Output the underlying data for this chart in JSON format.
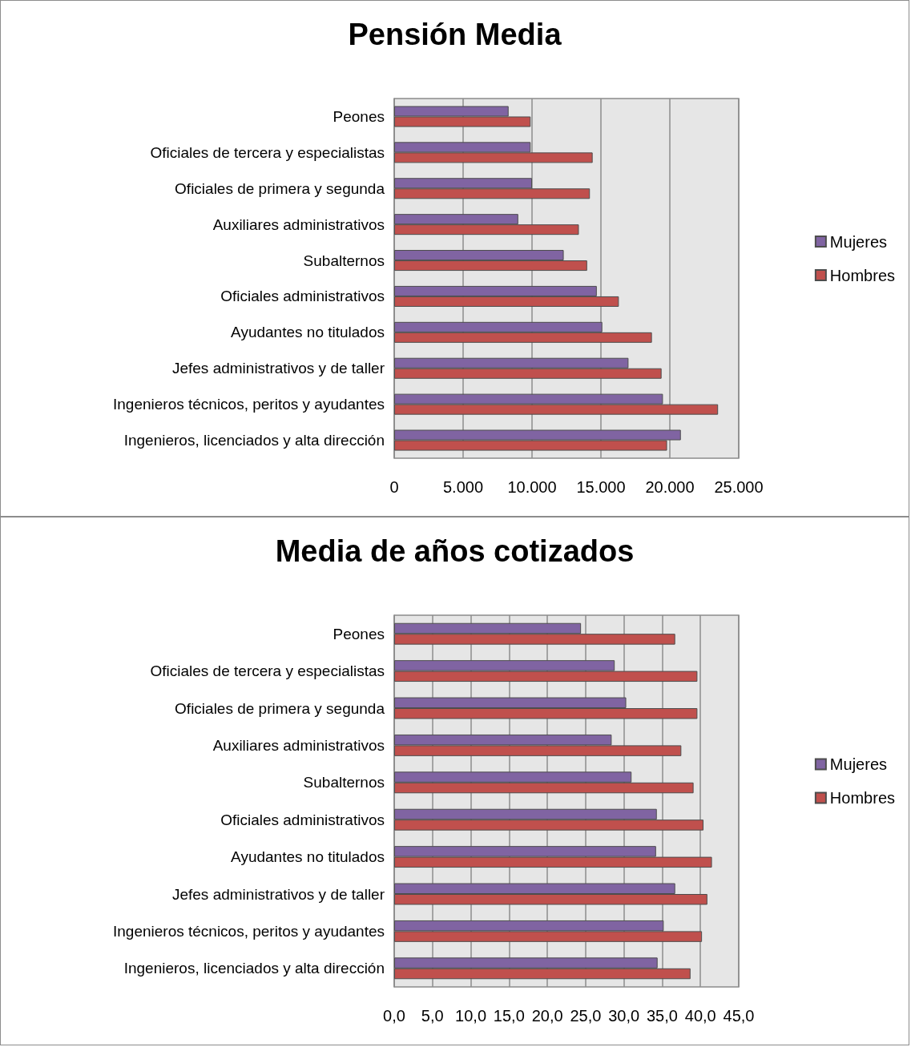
{
  "chart_data": [
    {
      "type": "bar",
      "orientation": "horizontal",
      "title": "Pensión Media",
      "categories": [
        "Peones",
        "Oficiales de tercera y especialistas",
        "Oficiales de primera y segunda",
        "Auxiliares administrativos",
        "Subalternos",
        "Oficiales administrativos",
        "Ayudantes no titulados",
        "Jefes administrativos y de taller",
        "Ingenieros técnicos, peritos y ayudantes",
        "Ingenieros, licenciados y alta dirección"
      ],
      "series": [
        {
          "name": "Mujeres",
          "color": "#8064a2",
          "values": [
            8300,
            9900,
            10000,
            9000,
            12300,
            14700,
            15100,
            17000,
            19500,
            20800
          ]
        },
        {
          "name": "Hombres",
          "color": "#c0504d",
          "values": [
            9900,
            14400,
            14200,
            13400,
            14000,
            16300,
            18700,
            19400,
            23500,
            19800
          ]
        }
      ],
      "xlim": [
        0,
        25000
      ],
      "xticks": [
        0,
        {
          "value": 5000,
          "label": "5.000"
        },
        {
          "value": 10000,
          "label": "10.000"
        },
        {
          "value": 15000,
          "label": "15.000"
        },
        {
          "value": 20000,
          "label": "20.000"
        },
        {
          "value": 25000,
          "label": "25.000"
        }
      ],
      "grid": "x",
      "legend": "right"
    },
    {
      "type": "bar",
      "orientation": "horizontal",
      "title": "Media de años cotizados",
      "categories": [
        "Peones",
        "Oficiales de tercera y especialistas",
        "Oficiales de primera y segunda",
        "Auxiliares administrativos",
        "Subalternos",
        "Oficiales administrativos",
        "Ayudantes no titulados",
        "Jefes administrativos y de taller",
        "Ingenieros técnicos, peritos y ayudantes",
        "Ingenieros, licenciados y alta dirección"
      ],
      "series": [
        {
          "name": "Mujeres",
          "color": "#8064a2",
          "values": [
            24.4,
            28.8,
            30.3,
            28.4,
            31.0,
            34.3,
            34.2,
            36.7,
            35.2,
            34.4
          ]
        },
        {
          "name": "Hombres",
          "color": "#c0504d",
          "values": [
            36.7,
            39.6,
            39.6,
            37.5,
            39.1,
            40.4,
            41.5,
            40.9,
            40.2,
            38.7
          ]
        }
      ],
      "xlim": [
        0,
        45
      ],
      "xticks": [
        {
          "value": 0,
          "label": "0,0"
        },
        {
          "value": 5,
          "label": "5,0"
        },
        {
          "value": 10,
          "label": "10,0"
        },
        {
          "value": 15,
          "label": "15,0"
        },
        {
          "value": 20,
          "label": "20,0"
        },
        {
          "value": 25,
          "label": "25,0"
        },
        {
          "value": 30,
          "label": "30,0"
        },
        {
          "value": 35,
          "label": "35,0"
        },
        {
          "value": 40,
          "label": "40,0"
        },
        {
          "value": 45,
          "label": "45,0"
        }
      ],
      "grid": "x",
      "legend": "right"
    }
  ]
}
